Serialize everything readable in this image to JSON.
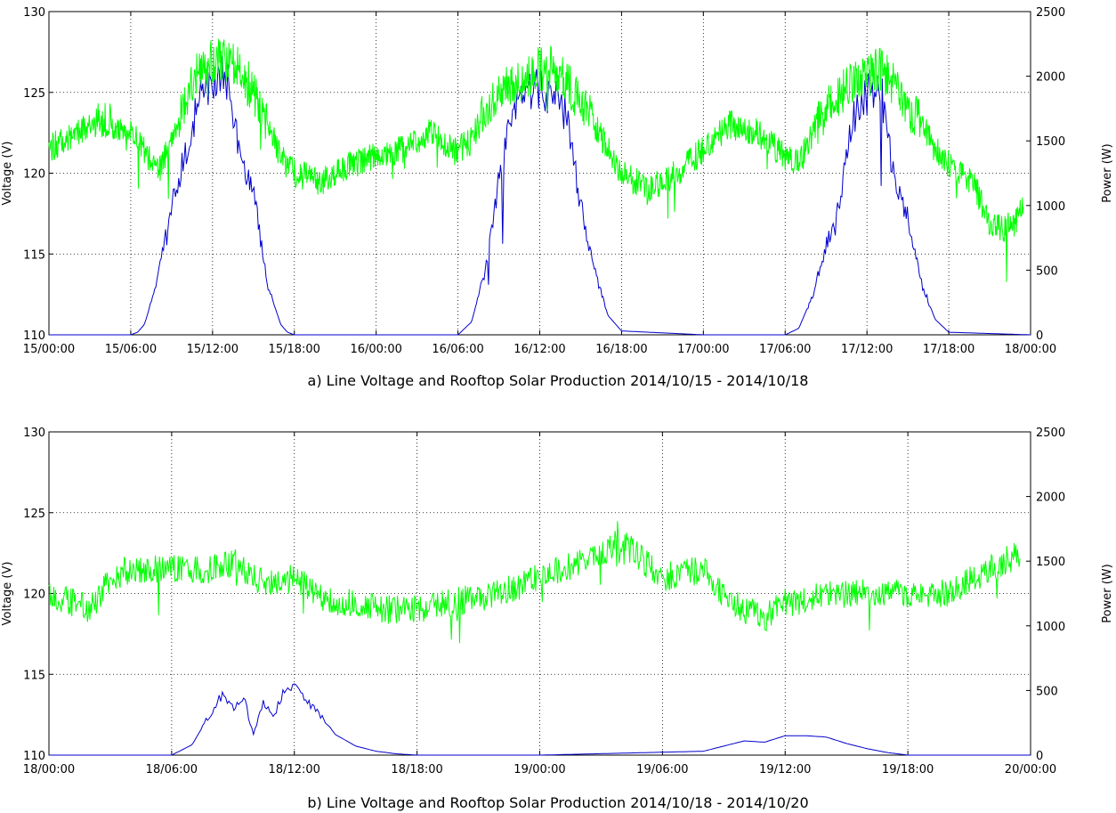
{
  "chart_data": [
    {
      "type": "line",
      "caption": "a) Line Voltage and Rooftop Solar Production 2014/10/15 - 2014/10/18",
      "ylabel": "Voltage (V)",
      "y2label": "Power (W)",
      "xlim": [
        "15/00:00",
        "18/00:00"
      ],
      "ylim": [
        110,
        130
      ],
      "y2lim": [
        0,
        2500
      ],
      "x_ticks": [
        "15/00:00",
        "15/06:00",
        "15/12:00",
        "15/18:00",
        "16/00:00",
        "16/06:00",
        "16/12:00",
        "16/18:00",
        "17/00:00",
        "17/06:00",
        "17/12:00",
        "17/18:00",
        "18/00:00"
      ],
      "y_ticks": [
        "110",
        "115",
        "120",
        "125",
        "130"
      ],
      "y2_ticks": [
        "0",
        "500",
        "1000",
        "1500",
        "2000",
        "2500"
      ],
      "grid": true,
      "series": [
        {
          "axis": "left",
          "color": "#00ff00",
          "x": [
            "15/00:00",
            "15/02:00",
            "15/04:00",
            "15/06:00",
            "15/07:00",
            "15/08:00",
            "15/09:00",
            "15/10:00",
            "15/11:00",
            "15/12:00",
            "15/13:00",
            "15/14:00",
            "15/15:00",
            "15/16:00",
            "15/17:00",
            "15/18:00",
            "15/20:00",
            "15/22:00",
            "16/00:00",
            "16/02:00",
            "16/04:00",
            "16/06:00",
            "16/07:00",
            "16/08:00",
            "16/10:00",
            "16/12:00",
            "16/13:00",
            "16/14:00",
            "16/15:00",
            "16/16:00",
            "16/17:00",
            "16/18:00",
            "16/19:00",
            "16/20:00",
            "16/22:00",
            "17/00:00",
            "17/02:00",
            "17/04:00",
            "17/06:00",
            "17/07:00",
            "17/08:00",
            "17/09:00",
            "17/10:00",
            "17/11:00",
            "17/12:00",
            "17/13:00",
            "17/14:00",
            "17/15:00",
            "17/16:00",
            "17/17:00",
            "17/18:00",
            "17/19:00",
            "17/20:00",
            "17/21:00",
            "17/22:00",
            "17/23:00",
            "17/23:30"
          ],
          "y": [
            121.5,
            122.5,
            123.2,
            122.5,
            121.5,
            120,
            122,
            124.5,
            126.5,
            127,
            127,
            126.5,
            125,
            123,
            121,
            120,
            119.5,
            120.5,
            121,
            121.5,
            122.5,
            121.5,
            122,
            124,
            125.5,
            126.5,
            126.5,
            125.5,
            124.5,
            123,
            121.5,
            120,
            119.5,
            119,
            120,
            121.5,
            123,
            122.5,
            121,
            120.5,
            122.5,
            124,
            125,
            125.5,
            126,
            126.5,
            125.5,
            124,
            123,
            121.5,
            120.5,
            120,
            119,
            117,
            116.5,
            117,
            118
          ]
        },
        {
          "axis": "right",
          "color": "#0000cc",
          "x": [
            "15/00:00",
            "15/05:00",
            "15/06:00",
            "15/06:30",
            "15/07:00",
            "15/07:30",
            "15/08:00",
            "15/09:00",
            "15/10:00",
            "15/11:00",
            "15/12:00",
            "15/13:00",
            "15/14:00",
            "15/15:00",
            "15/16:00",
            "15/17:00",
            "15/17:30",
            "15/18:00",
            "16/00:00",
            "16/06:00",
            "16/07:00",
            "16/08:00",
            "16/09:00",
            "16/10:00",
            "16/11:00",
            "16/12:00",
            "16/13:00",
            "16/14:00",
            "16/15:00",
            "16/16:00",
            "16/17:00",
            "16/18:00",
            "17/00:00",
            "17/06:00",
            "17/07:00",
            "17/08:00",
            "17/09:00",
            "17/10:00",
            "17/11:00",
            "17/12:00",
            "17/13:00",
            "17/14:00",
            "17/15:00",
            "17/16:00",
            "17/17:00",
            "17/18:00",
            "18/00:00"
          ],
          "y": [
            0,
            0,
            0,
            20,
            80,
            250,
            450,
            1000,
            1400,
            1800,
            1950,
            2000,
            1400,
            1100,
            400,
            80,
            20,
            0,
            0,
            0,
            100,
            500,
            1200,
            1700,
            1900,
            1900,
            1850,
            1700,
            1000,
            500,
            150,
            30,
            0,
            0,
            50,
            300,
            700,
            1000,
            1700,
            1850,
            1950,
            1200,
            900,
            400,
            120,
            20,
            0
          ]
        }
      ]
    },
    {
      "type": "line",
      "caption": "b) Line Voltage and Rooftop Solar Production 2014/10/18 - 2014/10/20",
      "ylabel": "Voltage (V)",
      "y2label": "Power (W)",
      "xlim": [
        "18/00:00",
        "20/00:00"
      ],
      "ylim": [
        110,
        130
      ],
      "y2lim": [
        0,
        2500
      ],
      "x_ticks": [
        "18/00:00",
        "18/06:00",
        "18/12:00",
        "18/18:00",
        "19/00:00",
        "19/06:00",
        "19/12:00",
        "19/18:00",
        "20/00:00"
      ],
      "y_ticks": [
        "110",
        "115",
        "120",
        "125",
        "130"
      ],
      "y2_ticks": [
        "0",
        "500",
        "1000",
        "1500",
        "2000",
        "2500"
      ],
      "grid": true,
      "series": [
        {
          "axis": "left",
          "color": "#00ff00",
          "x": [
            "18/00:00",
            "18/01:00",
            "18/02:00",
            "18/03:00",
            "18/04:00",
            "18/06:00",
            "18/08:00",
            "18/09:00",
            "18/10:00",
            "18/11:00",
            "18/12:00",
            "18/13:00",
            "18/14:00",
            "18/15:00",
            "18/16:00",
            "18/18:00",
            "18/20:00",
            "18/22:00",
            "19/00:00",
            "19/02:00",
            "19/04:00",
            "19/06:00",
            "19/08:00",
            "19/09:00",
            "19/10:00",
            "19/11:00",
            "19/12:00",
            "19/13:00",
            "19/14:00",
            "19/16:00",
            "19/18:00",
            "19/20:00",
            "19/22:00",
            "19/23:30"
          ],
          "y": [
            120,
            119.5,
            119,
            121,
            121.5,
            121.5,
            121.5,
            122,
            121,
            120.5,
            121,
            120,
            119.5,
            119.5,
            119,
            119,
            119.5,
            120,
            121,
            122,
            123.2,
            121,
            121.5,
            120,
            119,
            118.5,
            119.5,
            119.5,
            120,
            120,
            120,
            120,
            121.5,
            122.5
          ]
        },
        {
          "axis": "right",
          "color": "#0000cc",
          "x": [
            "18/00:00",
            "18/06:00",
            "18/07:00",
            "18/08:00",
            "18/08:30",
            "18/09:00",
            "18/09:30",
            "18/10:00",
            "18/10:30",
            "18/11:00",
            "18/11:30",
            "18/12:00",
            "18/12:30",
            "18/13:00",
            "18/14:00",
            "18/15:00",
            "18/16:00",
            "18/17:00",
            "18/18:00",
            "19/00:00",
            "19/08:00",
            "19/09:00",
            "19/10:00",
            "19/11:00",
            "19/12:00",
            "19/13:00",
            "19/14:00",
            "19/15:00",
            "19/16:00",
            "19/17:00",
            "19/18:00",
            "20/00:00"
          ],
          "y": [
            0,
            0,
            80,
            350,
            480,
            360,
            460,
            160,
            420,
            300,
            500,
            530,
            430,
            370,
            160,
            70,
            30,
            10,
            0,
            0,
            30,
            70,
            110,
            100,
            150,
            150,
            140,
            90,
            50,
            20,
            0,
            0
          ]
        }
      ]
    }
  ]
}
